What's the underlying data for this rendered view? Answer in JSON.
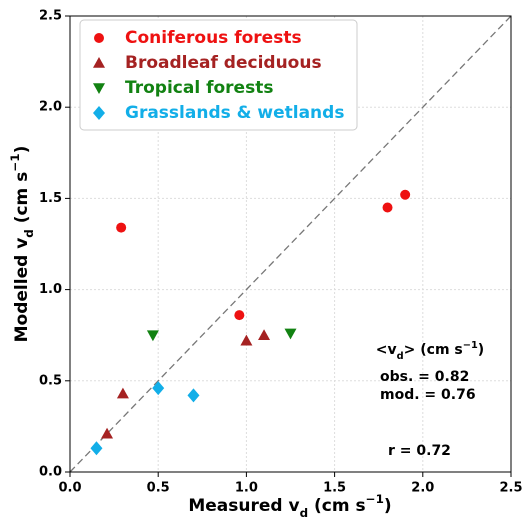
{
  "chart_data": {
    "type": "scatter",
    "xlabel": [
      {
        "text": "Measured v"
      },
      {
        "text": "d",
        "style": "sub"
      },
      {
        "text": " (cm s"
      },
      {
        "text": "−1",
        "style": "sup"
      },
      {
        "text": ")"
      }
    ],
    "ylabel": [
      {
        "text": "Modelled v"
      },
      {
        "text": "d",
        "style": "sub"
      },
      {
        "text": " (cm s"
      },
      {
        "text": "−1",
        "style": "sup"
      },
      {
        "text": ")"
      }
    ],
    "xlim": [
      0,
      2.5
    ],
    "ylim": [
      0,
      2.5
    ],
    "xticks": [
      {
        "value": 0,
        "label": "0.0"
      },
      {
        "value": 0.5,
        "label": "0.5"
      },
      {
        "value": 1,
        "label": "1.0"
      },
      {
        "value": 1.5,
        "label": "1.5"
      },
      {
        "value": 2,
        "label": "2.0"
      },
      {
        "value": 2.5,
        "label": "2.5"
      }
    ],
    "yticks": [
      {
        "value": 0,
        "label": "0.0"
      },
      {
        "value": 0.5,
        "label": "0.5"
      },
      {
        "value": 1,
        "label": "1.0"
      },
      {
        "value": 1.5,
        "label": "1.5"
      },
      {
        "value": 2,
        "label": "2.0"
      },
      {
        "value": 2.5,
        "label": "2.5"
      }
    ],
    "grid": true,
    "diagonal": true,
    "legend": "upper-left",
    "series": [
      {
        "name": "Coniferous forests",
        "color": "#ee1111",
        "marker": "circle",
        "x": [
          0.29,
          0.96,
          1.8,
          1.9
        ],
        "values": [
          1.34,
          0.86,
          1.45,
          1.52
        ]
      },
      {
        "name": "Broadleaf deciduous",
        "color": "#a52222",
        "marker": "triangle-up",
        "x": [
          0.21,
          0.3,
          1.0,
          1.1
        ],
        "values": [
          0.21,
          0.43,
          0.72,
          0.75
        ]
      },
      {
        "name": "Tropical forests",
        "color": "#128212",
        "marker": "triangle-down",
        "x": [
          0.47,
          1.25
        ],
        "values": [
          0.75,
          0.76
        ]
      },
      {
        "name": "Grasslands & wetlands",
        "color": "#12aee8",
        "marker": "diamond",
        "x": [
          0.15,
          0.5,
          0.7
        ],
        "values": [
          0.13,
          0.46,
          0.42
        ]
      }
    ],
    "annotations": [
      [
        {
          "text": "<v"
        },
        {
          "text": "d",
          "style": "sub"
        },
        {
          "text": "> (cm s"
        },
        {
          "text": "−1",
          "style": "sup"
        },
        {
          "text": ")"
        }
      ],
      [
        {
          "text": "obs. = 0.82"
        }
      ],
      [
        {
          "text": "mod. = 0.76"
        }
      ],
      [
        {
          "text": "r = 0.72"
        }
      ]
    ]
  }
}
